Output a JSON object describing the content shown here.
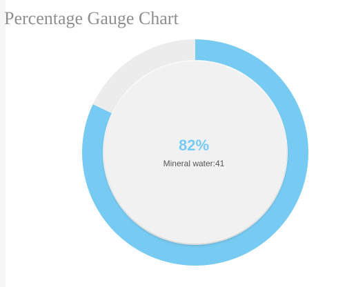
{
  "page": {
    "title": "Percentage Gauge Chart"
  },
  "chart_data": {
    "type": "pie",
    "subtype": "gauge",
    "title": "Percentage Gauge Chart",
    "percent": 82,
    "percent_label": "82%",
    "series": [
      {
        "name": "Mineral water",
        "value": 41
      }
    ],
    "center_label": "Mineral water:41",
    "colors": {
      "fill": "#77cbf2",
      "track": "#ececec",
      "inner": "#f1f1f1",
      "percent_text": "#77cbf2",
      "label_text": "#555555",
      "title_text": "#8e8e8e"
    }
  }
}
